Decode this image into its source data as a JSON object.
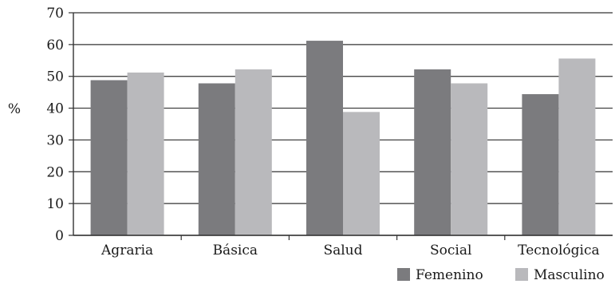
{
  "chart_data": {
    "type": "bar",
    "categories": [
      "Agraria",
      "Básica",
      "Salud",
      "Social",
      "Tecnológica"
    ],
    "series": [
      {
        "name": "Femenino",
        "color": "#7b7b7e",
        "values": [
          48.8,
          47.8,
          61.2,
          52.2,
          44.4
        ]
      },
      {
        "name": "Masculino",
        "color": "#b9b9bc",
        "values": [
          51.2,
          52.2,
          38.8,
          47.8,
          55.6
        ]
      }
    ],
    "ylabel": "%",
    "ylim": [
      0,
      70
    ],
    "yticks": [
      0,
      10,
      20,
      30,
      40,
      50,
      60,
      70
    ],
    "grid": true,
    "legend": "bottom-right"
  }
}
